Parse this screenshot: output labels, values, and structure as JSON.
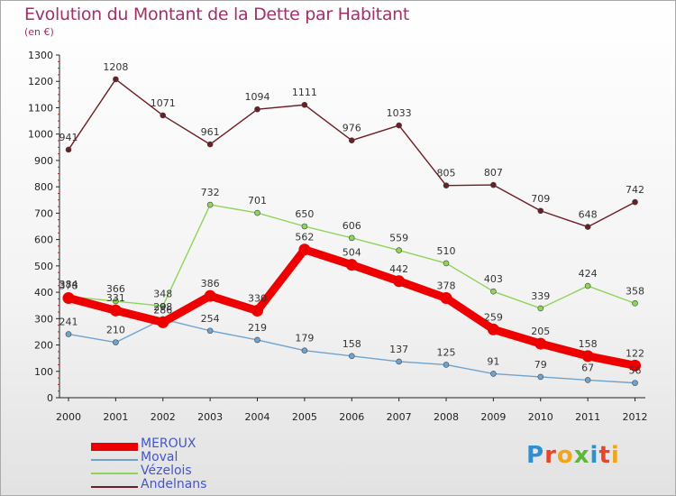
{
  "header": {
    "title": "Evolution du Montant de la Dette par Habitant",
    "subtitle": "(en €)"
  },
  "logo": {
    "text": "Proxiti",
    "colors": [
      "#2f8fd0",
      "#e8452c",
      "#f2a51a",
      "#5ab83a",
      "#2f8fd0",
      "#e8452c",
      "#f2a51a"
    ]
  },
  "chart_data": {
    "type": "line",
    "title": "Evolution du Montant de la Dette par Habitant",
    "subtitle": "(en €)",
    "x": [
      "2000",
      "2001",
      "2002",
      "2003",
      "2004",
      "2005",
      "2006",
      "2007",
      "2008",
      "2009",
      "2010",
      "2011",
      "2012"
    ],
    "ylim": [
      0,
      1300
    ],
    "yticks": [
      0,
      100,
      200,
      300,
      400,
      500,
      600,
      700,
      800,
      900,
      1000,
      1100,
      1200,
      1300
    ],
    "grid": false,
    "legend_position": "bottom-left",
    "series": [
      {
        "name": "Andelnans",
        "color": "#6b1f24",
        "values": [
          941,
          1208,
          1071,
          961,
          1094,
          1111,
          976,
          1033,
          805,
          807,
          709,
          648,
          742
        ]
      },
      {
        "name": "Vézelois",
        "color": "#8fd45a",
        "values": [
          384,
          366,
          348,
          732,
          701,
          650,
          606,
          559,
          510,
          403,
          339,
          424,
          358
        ]
      },
      {
        "name": "Moval",
        "color": "#6fa3cf",
        "values": [
          241,
          210,
          298,
          254,
          219,
          179,
          158,
          137,
          125,
          91,
          79,
          67,
          56
        ]
      },
      {
        "name": "MEROUX",
        "color": "#ee0000",
        "values": [
          378,
          331,
          286,
          386,
          330,
          562,
          504,
          442,
          378,
          259,
          205,
          158,
          122
        ]
      }
    ]
  },
  "legend": {
    "items": [
      {
        "label": "MEROUX",
        "color": "#ee0000",
        "width": 9
      },
      {
        "label": "Moval",
        "color": "#6fa3cf",
        "width": 2
      },
      {
        "label": "Vézelois",
        "color": "#8fd45a",
        "width": 2
      },
      {
        "label": "Andelnans",
        "color": "#6b1f24",
        "width": 2
      }
    ]
  }
}
